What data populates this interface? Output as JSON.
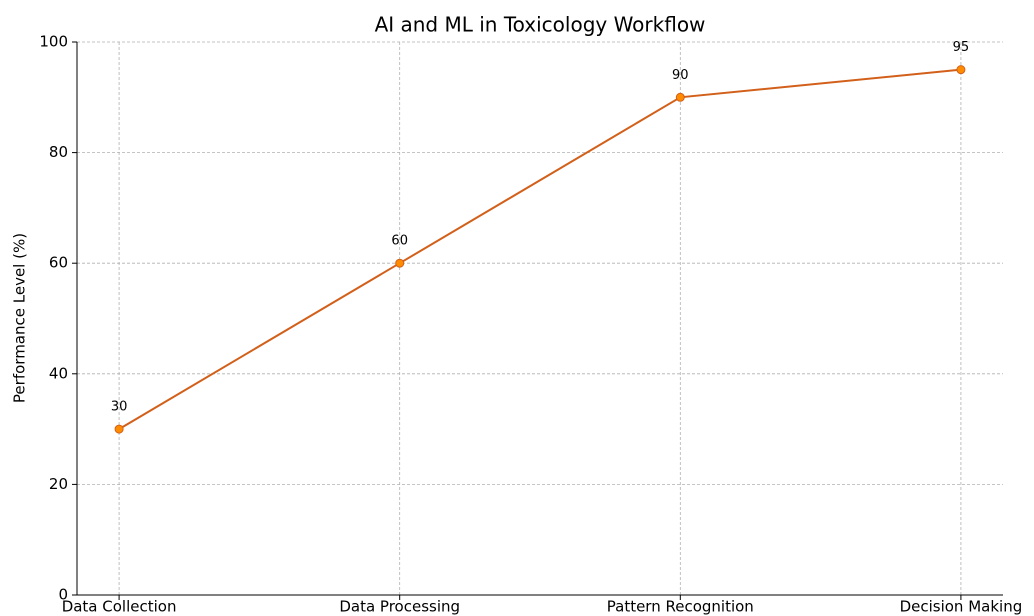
{
  "chart_data": {
    "type": "line",
    "title": "AI and ML in Toxicology Workflow",
    "ylabel": "Performance Level (%)",
    "categories": [
      "Data Collection",
      "Data Processing",
      "Pattern Recognition",
      "Decision Making"
    ],
    "values": [
      30,
      60,
      90,
      95
    ],
    "color": "#d2601a",
    "marker_color": "#ff8c00",
    "ylim": [
      0,
      100
    ],
    "yticks": [
      0,
      20,
      40,
      60,
      80,
      100
    ],
    "grid": true
  }
}
